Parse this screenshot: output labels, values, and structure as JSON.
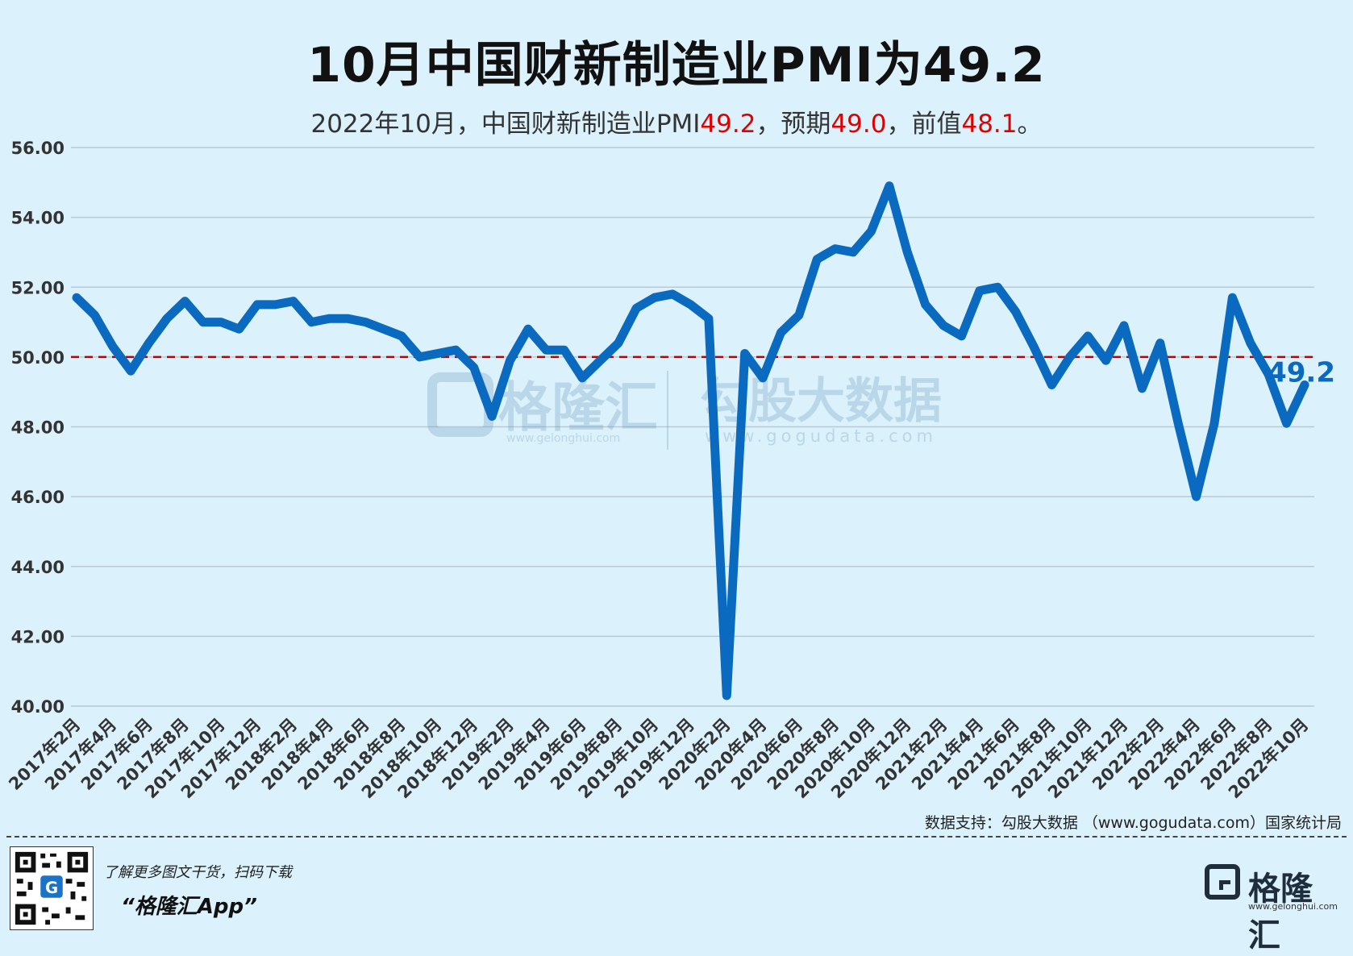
{
  "title": "10月中国财新制造业PMI为49.2",
  "subtitle": {
    "p1": "2022年10月，中国财新制造业PMI",
    "v1": "49.2",
    "p2": "，预期",
    "v2": "49.0",
    "p3": "，前值",
    "v3": "48.1",
    "p4": "。"
  },
  "source": "数据支持：勾股大数据 （www.gogudata.com）国家统计局",
  "footer": {
    "promo_line1": "了解更多图文干货，扫码下载",
    "promo_line2": "“格隆汇App”",
    "logo_text": "格隆汇",
    "logo_url": "www.gelonghui.com"
  },
  "watermark": {
    "brand": "格隆汇",
    "brand_url": "www.gelonghui.com",
    "data_brand": "勾股大数据",
    "data_url": "www.gogudata.com"
  },
  "colors": {
    "line": "#0a6ac0",
    "reference": "#c00000",
    "grid": "#b9c9d6",
    "highlight": "#e00000"
  },
  "chart_data": {
    "type": "line",
    "title": "10月中国财新制造业PMI为49.2",
    "ylim": [
      40,
      56
    ],
    "yticks": [
      "40.00",
      "42.00",
      "44.00",
      "46.00",
      "48.00",
      "50.00",
      "52.00",
      "54.00",
      "56.00"
    ],
    "reference_line": 50,
    "last_value_label": "49.2",
    "x_tick_labels": [
      "2017年2月",
      "2017年4月",
      "2017年6月",
      "2017年8月",
      "2017年10月",
      "2017年12月",
      "2018年2月",
      "2018年4月",
      "2018年6月",
      "2018年8月",
      "2018年10月",
      "2018年12月",
      "2019年2月",
      "2019年4月",
      "2019年6月",
      "2019年8月",
      "2019年10月",
      "2019年12月",
      "2020年2月",
      "2020年4月",
      "2020年6月",
      "2020年8月",
      "2020年10月",
      "2020年12月",
      "2021年2月",
      "2021年4月",
      "2021年6月",
      "2021年8月",
      "2021年10月",
      "2021年12月",
      "2022年2月",
      "2022年4月",
      "2022年6月",
      "2022年8月",
      "2022年10月"
    ],
    "values": [
      51.7,
      51.2,
      50.3,
      49.6,
      50.4,
      51.1,
      51.6,
      51.0,
      51.0,
      50.8,
      51.5,
      51.5,
      51.6,
      51.0,
      51.1,
      51.1,
      51.0,
      50.8,
      50.6,
      50.0,
      50.1,
      50.2,
      49.7,
      48.3,
      49.9,
      50.8,
      50.2,
      50.2,
      49.4,
      49.9,
      50.4,
      51.4,
      51.7,
      51.8,
      51.5,
      51.1,
      40.3,
      50.1,
      49.4,
      50.7,
      51.2,
      52.8,
      53.1,
      53.0,
      53.6,
      54.9,
      53.0,
      51.5,
      50.9,
      50.6,
      51.9,
      52.0,
      51.3,
      50.3,
      49.2,
      50.0,
      50.6,
      49.9,
      50.9,
      49.1,
      50.4,
      48.1,
      46.0,
      48.1,
      51.7,
      50.4,
      49.5,
      48.1,
      49.2
    ]
  }
}
